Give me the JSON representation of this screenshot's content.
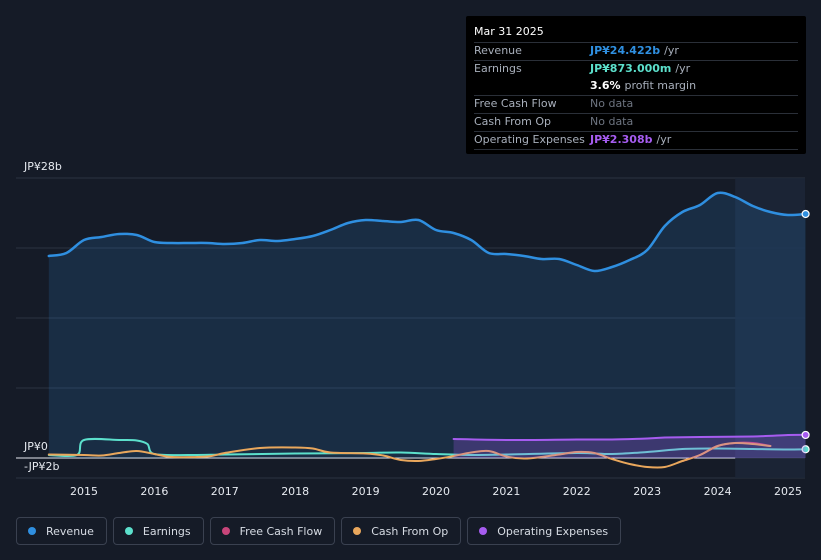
{
  "chart_data": {
    "type": "area",
    "title": "",
    "xlabel": "",
    "ylabel": "",
    "ylim": [
      -2,
      28
    ],
    "y_tick_labels": [
      "JP¥28b",
      "JP¥0",
      "-JP¥2b"
    ],
    "x_tick_labels": [
      "2015",
      "2016",
      "2017",
      "2018",
      "2019",
      "2020",
      "2021",
      "2022",
      "2023",
      "2024",
      "2025"
    ],
    "forecast_shade_from": 2024.25,
    "series": [
      {
        "name": "Revenue",
        "color": "#2f8fe0",
        "fill": true,
        "end_marker": true,
        "points": [
          [
            2014.5,
            20.2
          ],
          [
            2014.75,
            20.5
          ],
          [
            2015.0,
            21.8
          ],
          [
            2015.25,
            22.1
          ],
          [
            2015.5,
            22.4
          ],
          [
            2015.75,
            22.3
          ],
          [
            2016.0,
            21.6
          ],
          [
            2016.25,
            21.5
          ],
          [
            2016.5,
            21.5
          ],
          [
            2016.75,
            21.5
          ],
          [
            2017.0,
            21.4
          ],
          [
            2017.25,
            21.5
          ],
          [
            2017.5,
            21.8
          ],
          [
            2017.75,
            21.7
          ],
          [
            2018.0,
            21.9
          ],
          [
            2018.25,
            22.2
          ],
          [
            2018.5,
            22.8
          ],
          [
            2018.75,
            23.5
          ],
          [
            2019.0,
            23.8
          ],
          [
            2019.25,
            23.7
          ],
          [
            2019.5,
            23.6
          ],
          [
            2019.75,
            23.8
          ],
          [
            2020.0,
            22.8
          ],
          [
            2020.25,
            22.5
          ],
          [
            2020.5,
            21.8
          ],
          [
            2020.75,
            20.5
          ],
          [
            2021.0,
            20.4
          ],
          [
            2021.25,
            20.2
          ],
          [
            2021.5,
            19.9
          ],
          [
            2021.75,
            19.9
          ],
          [
            2022.0,
            19.3
          ],
          [
            2022.25,
            18.7
          ],
          [
            2022.5,
            19.1
          ],
          [
            2022.75,
            19.8
          ],
          [
            2023.0,
            20.8
          ],
          [
            2023.25,
            23.2
          ],
          [
            2023.5,
            24.6
          ],
          [
            2023.75,
            25.3
          ],
          [
            2024.0,
            26.5
          ],
          [
            2024.25,
            26.1
          ],
          [
            2024.5,
            25.2
          ],
          [
            2024.75,
            24.6
          ],
          [
            2025.0,
            24.3
          ],
          [
            2025.25,
            24.4
          ]
        ]
      },
      {
        "name": "Earnings",
        "color": "#5ce0cc",
        "fill": false,
        "end_marker": true,
        "points": [
          [
            2014.5,
            0.3
          ],
          [
            2014.9,
            0.3
          ],
          [
            2015.0,
            1.8
          ],
          [
            2015.5,
            1.8
          ],
          [
            2015.75,
            1.75
          ],
          [
            2015.9,
            1.4
          ],
          [
            2016.0,
            0.4
          ],
          [
            2016.5,
            0.3
          ],
          [
            2017.0,
            0.35
          ],
          [
            2018.0,
            0.45
          ],
          [
            2019.0,
            0.5
          ],
          [
            2019.5,
            0.55
          ],
          [
            2020.0,
            0.4
          ],
          [
            2020.5,
            0.3
          ],
          [
            2021.0,
            0.35
          ],
          [
            2022.0,
            0.5
          ],
          [
            2022.5,
            0.4
          ],
          [
            2023.0,
            0.6
          ],
          [
            2023.5,
            0.9
          ],
          [
            2024.0,
            0.95
          ],
          [
            2024.5,
            0.9
          ],
          [
            2025.0,
            0.85
          ],
          [
            2025.25,
            0.873
          ]
        ]
      },
      {
        "name": "Free Cash Flow",
        "color": "#c8457a",
        "fill": false,
        "end_marker": false,
        "points": [
          [
            2023.5,
            -0.3
          ],
          [
            2023.75,
            0.3
          ],
          [
            2024.0,
            1.2
          ],
          [
            2024.25,
            1.5
          ],
          [
            2024.5,
            1.5
          ],
          [
            2024.75,
            1.2
          ]
        ]
      },
      {
        "name": "Cash From Op",
        "color": "#e9a75c",
        "fill": false,
        "end_marker": false,
        "points": [
          [
            2014.5,
            0.35
          ],
          [
            2015.0,
            0.3
          ],
          [
            2015.25,
            0.25
          ],
          [
            2015.5,
            0.5
          ],
          [
            2015.75,
            0.7
          ],
          [
            2016.0,
            0.4
          ],
          [
            2016.25,
            0.1
          ],
          [
            2016.75,
            0.15
          ],
          [
            2017.0,
            0.5
          ],
          [
            2017.5,
            1.0
          ],
          [
            2018.0,
            1.05
          ],
          [
            2018.25,
            0.95
          ],
          [
            2018.5,
            0.55
          ],
          [
            2019.0,
            0.45
          ],
          [
            2019.25,
            0.25
          ],
          [
            2019.5,
            -0.2
          ],
          [
            2019.75,
            -0.3
          ],
          [
            2020.0,
            -0.1
          ],
          [
            2020.25,
            0.2
          ],
          [
            2020.5,
            0.55
          ],
          [
            2020.75,
            0.7
          ],
          [
            2021.0,
            0.15
          ],
          [
            2021.25,
            -0.05
          ],
          [
            2021.5,
            0.1
          ],
          [
            2021.75,
            0.35
          ],
          [
            2022.0,
            0.6
          ],
          [
            2022.25,
            0.5
          ],
          [
            2022.5,
            -0.1
          ],
          [
            2022.75,
            -0.6
          ],
          [
            2023.0,
            -0.9
          ],
          [
            2023.25,
            -0.9
          ],
          [
            2023.5,
            -0.3
          ],
          [
            2023.75,
            0.3
          ],
          [
            2024.0,
            1.2
          ],
          [
            2024.25,
            1.5
          ],
          [
            2024.5,
            1.4
          ],
          [
            2024.75,
            1.2
          ]
        ]
      },
      {
        "name": "Operating Expenses",
        "color": "#a65cf0",
        "fill": true,
        "end_marker": true,
        "points": [
          [
            2020.25,
            1.9
          ],
          [
            2021.0,
            1.8
          ],
          [
            2022.0,
            1.85
          ],
          [
            2022.5,
            1.85
          ],
          [
            2023.0,
            1.95
          ],
          [
            2023.25,
            2.05
          ],
          [
            2023.75,
            2.1
          ],
          [
            2024.5,
            2.15
          ],
          [
            2025.0,
            2.3
          ],
          [
            2025.25,
            2.308
          ]
        ]
      }
    ]
  },
  "tooltip": {
    "date": "Mar 31 2025",
    "revenue": {
      "label": "Revenue",
      "value": "JP¥24.422b",
      "unit": "/yr",
      "color": "#2f8fe0"
    },
    "earnings": {
      "label": "Earnings",
      "value": "JP¥873.000m",
      "unit": "/yr",
      "color": "#5ce0cc"
    },
    "margin": {
      "value": "3.6%",
      "text": "profit margin"
    },
    "fcf": {
      "label": "Free Cash Flow",
      "value": "No data"
    },
    "cfo": {
      "label": "Cash From Op",
      "value": "No data"
    },
    "opex": {
      "label": "Operating Expenses",
      "value": "JP¥2.308b",
      "unit": "/yr",
      "color": "#a65cf0"
    }
  },
  "legend": [
    {
      "label": "Revenue",
      "color": "#2f8fe0"
    },
    {
      "label": "Earnings",
      "color": "#5ce0cc"
    },
    {
      "label": "Free Cash Flow",
      "color": "#c8457a"
    },
    {
      "label": "Cash From Op",
      "color": "#e9a75c"
    },
    {
      "label": "Operating Expenses",
      "color": "#a65cf0"
    }
  ]
}
